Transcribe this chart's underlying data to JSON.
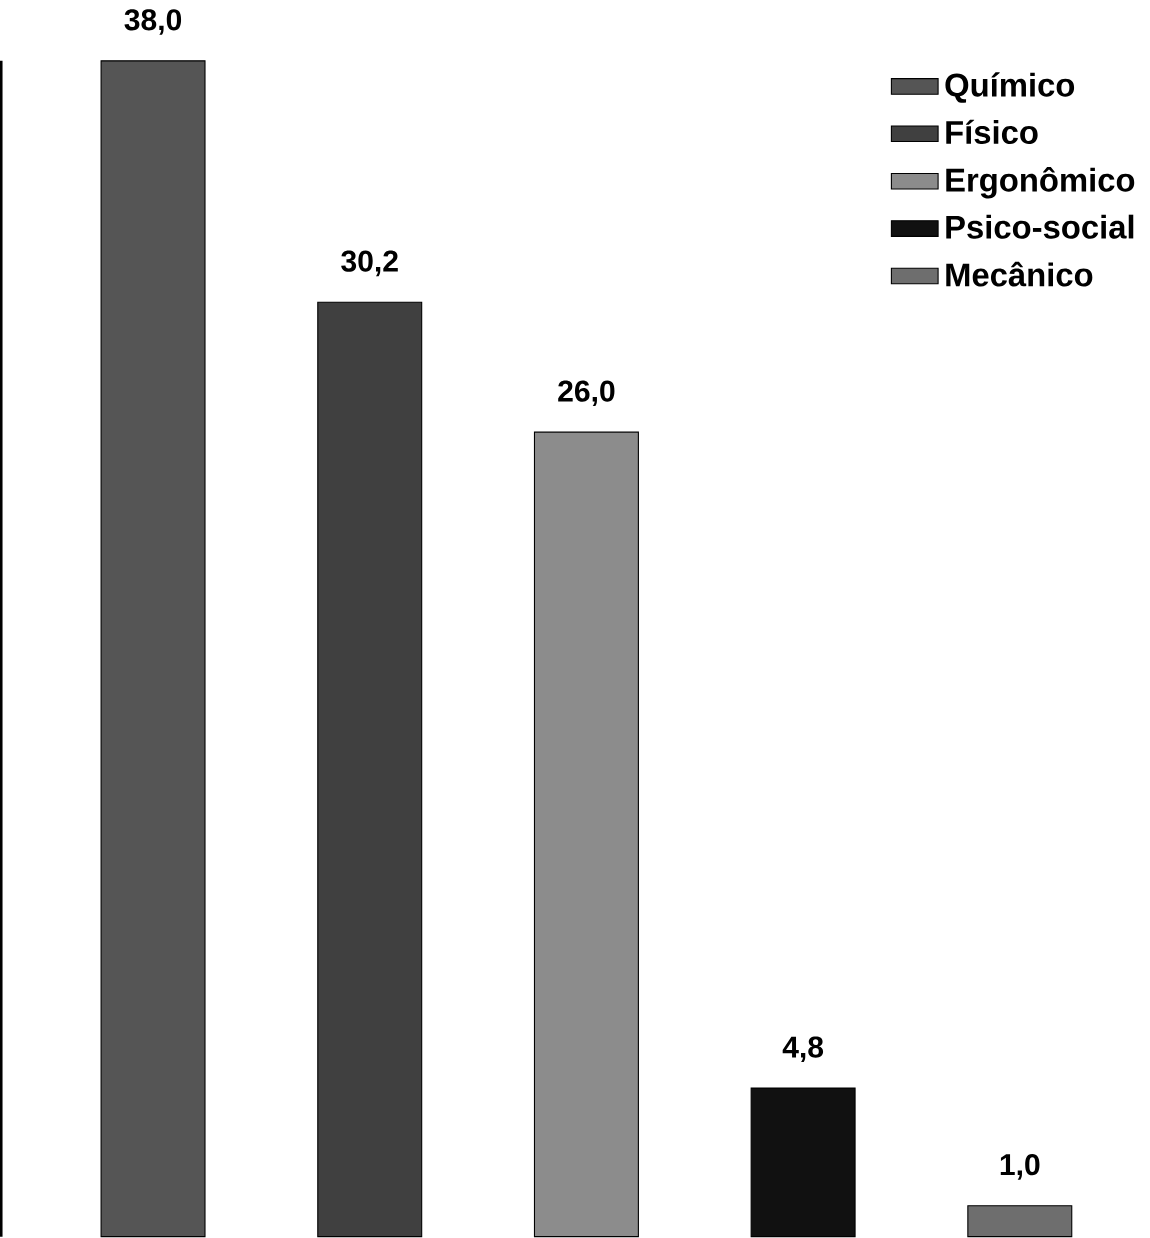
{
  "chart_data": {
    "type": "bar",
    "categories": [
      null,
      null,
      null,
      null,
      null
    ],
    "series": [
      {
        "name": "Químico",
        "color": "#555555",
        "values": [
          38.0,
          null,
          null,
          null,
          null
        ],
        "value_labels": [
          "38,0",
          null,
          null,
          null,
          null
        ]
      },
      {
        "name": "Físico",
        "color": "#404040",
        "values": [
          null,
          30.2,
          null,
          null,
          null
        ],
        "value_labels": [
          null,
          "30,2",
          null,
          null,
          null
        ]
      },
      {
        "name": "Ergonômico",
        "color": "#8c8c8c",
        "values": [
          null,
          null,
          26.0,
          null,
          null
        ],
        "value_labels": [
          null,
          null,
          "26,0",
          null,
          null
        ]
      },
      {
        "name": "Psico-social",
        "color": "#111111",
        "values": [
          null,
          null,
          null,
          4.8,
          null
        ],
        "value_labels": [
          null,
          null,
          null,
          "4,8",
          null
        ]
      },
      {
        "name": "Mecânico",
        "color": "#6e6e6e",
        "values": [
          null,
          null,
          null,
          null,
          1.0
        ],
        "value_labels": [
          null,
          null,
          null,
          null,
          "1,0"
        ]
      }
    ],
    "legend": "top right",
    "stacked": true
  }
}
